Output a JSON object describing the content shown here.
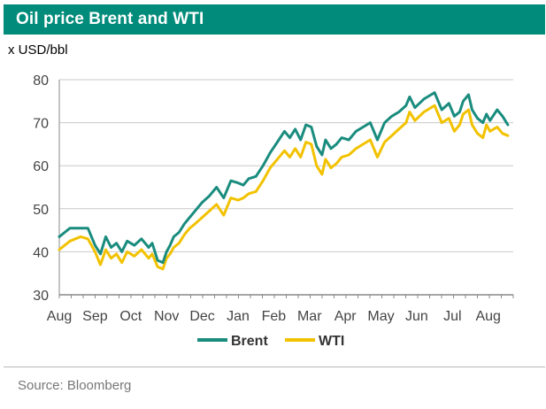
{
  "header": {
    "title": "Oil price Brent and WTI"
  },
  "unit_label": "x USD/bbl",
  "source": "Source: Bloomberg",
  "colors": {
    "brand": "#008b7a",
    "brent": "#1a8c7e",
    "wti": "#f2c200"
  },
  "chart_data": {
    "type": "line",
    "title": "Oil price Brent and WTI",
    "ylabel": "x USD/bbl",
    "xlabel": "",
    "ylim": [
      30,
      80
    ],
    "yticks": [
      30,
      40,
      50,
      60,
      70,
      80
    ],
    "xlim": [
      0,
      12.7
    ],
    "xticks": [
      {
        "x": 0,
        "label": "Aug"
      },
      {
        "x": 1,
        "label": "Sep"
      },
      {
        "x": 2,
        "label": "Oct"
      },
      {
        "x": 3,
        "label": "Nov"
      },
      {
        "x": 4,
        "label": "Dec"
      },
      {
        "x": 5,
        "label": "Jan"
      },
      {
        "x": 6,
        "label": "Feb"
      },
      {
        "x": 7,
        "label": "Mar"
      },
      {
        "x": 8,
        "label": "Apr"
      },
      {
        "x": 9,
        "label": "May"
      },
      {
        "x": 10,
        "label": "Jun"
      },
      {
        "x": 11,
        "label": "Jul"
      },
      {
        "x": 12,
        "label": "Aug"
      }
    ],
    "grid": "horizontal",
    "legend": "bottom",
    "series": [
      {
        "name": "Brent",
        "x": [
          0,
          0.15,
          0.3,
          0.45,
          0.6,
          0.8,
          1.0,
          1.15,
          1.3,
          1.45,
          1.6,
          1.75,
          1.9,
          2.1,
          2.3,
          2.5,
          2.6,
          2.75,
          2.9,
          3.0,
          3.1,
          3.2,
          3.35,
          3.5,
          3.65,
          3.8,
          4.0,
          4.2,
          4.4,
          4.6,
          4.8,
          5.0,
          5.15,
          5.3,
          5.5,
          5.7,
          5.9,
          6.1,
          6.3,
          6.45,
          6.6,
          6.75,
          6.9,
          7.05,
          7.2,
          7.35,
          7.45,
          7.6,
          7.75,
          7.9,
          8.1,
          8.3,
          8.5,
          8.7,
          8.9,
          9.1,
          9.3,
          9.5,
          9.7,
          9.8,
          9.95,
          10.2,
          10.5,
          10.7,
          10.9,
          11.05,
          11.2,
          11.3,
          11.45,
          11.55,
          11.7,
          11.85,
          11.95,
          12.05,
          12.25,
          12.4,
          12.55
        ],
        "y": [
          43.5,
          44.5,
          45.5,
          45.5,
          45.5,
          45.5,
          41.5,
          39.5,
          43.5,
          41.0,
          42.0,
          40.0,
          42.5,
          41.5,
          43.0,
          41.0,
          42.0,
          38.0,
          37.5,
          40.0,
          41.5,
          43.5,
          44.5,
          46.5,
          48.0,
          49.5,
          51.5,
          53.0,
          55.0,
          52.5,
          56.5,
          56.0,
          55.5,
          57.0,
          57.5,
          60.0,
          63.0,
          65.5,
          68.0,
          66.5,
          68.5,
          66.0,
          69.5,
          69.0,
          64.5,
          62.5,
          66.0,
          64.0,
          65.0,
          66.5,
          66.0,
          68.0,
          69.0,
          70.0,
          66.0,
          70.0,
          71.5,
          72.5,
          74.0,
          76.0,
          73.5,
          75.5,
          77.0,
          73.0,
          74.5,
          71.5,
          72.5,
          75.0,
          76.5,
          73.0,
          71.0,
          70.0,
          72.0,
          70.5,
          73.0,
          71.5,
          69.5
        ]
      },
      {
        "name": "WTI",
        "x": [
          0,
          0.15,
          0.3,
          0.45,
          0.6,
          0.8,
          1.0,
          1.15,
          1.3,
          1.45,
          1.6,
          1.75,
          1.9,
          2.1,
          2.3,
          2.5,
          2.6,
          2.75,
          2.9,
          3.0,
          3.1,
          3.2,
          3.35,
          3.5,
          3.65,
          3.8,
          4.0,
          4.2,
          4.4,
          4.6,
          4.8,
          5.0,
          5.15,
          5.3,
          5.5,
          5.7,
          5.9,
          6.1,
          6.3,
          6.45,
          6.6,
          6.75,
          6.9,
          7.05,
          7.2,
          7.35,
          7.45,
          7.6,
          7.75,
          7.9,
          8.1,
          8.3,
          8.5,
          8.7,
          8.9,
          9.1,
          9.3,
          9.5,
          9.7,
          9.8,
          9.95,
          10.2,
          10.5,
          10.7,
          10.9,
          11.05,
          11.2,
          11.3,
          11.45,
          11.55,
          11.7,
          11.85,
          11.95,
          12.05,
          12.25,
          12.4,
          12.55
        ],
        "y": [
          40.5,
          41.5,
          42.5,
          43.0,
          43.5,
          43.0,
          40.0,
          37.0,
          40.5,
          38.5,
          39.5,
          37.5,
          40.0,
          39.0,
          40.5,
          38.5,
          39.5,
          36.5,
          36.0,
          38.5,
          39.5,
          41.0,
          42.0,
          44.0,
          45.5,
          46.5,
          48.0,
          49.5,
          51.0,
          48.5,
          52.5,
          52.0,
          52.5,
          53.5,
          54.0,
          56.5,
          59.5,
          61.5,
          63.5,
          62.0,
          64.0,
          62.0,
          65.5,
          65.0,
          60.0,
          58.0,
          61.5,
          59.5,
          60.5,
          62.0,
          62.5,
          64.0,
          65.0,
          66.0,
          62.0,
          65.5,
          67.0,
          68.5,
          70.0,
          72.5,
          70.5,
          72.5,
          74.0,
          70.0,
          71.0,
          68.0,
          69.5,
          72.0,
          73.0,
          69.5,
          67.5,
          66.5,
          69.5,
          68.0,
          69.0,
          67.5,
          67.0
        ]
      }
    ]
  }
}
